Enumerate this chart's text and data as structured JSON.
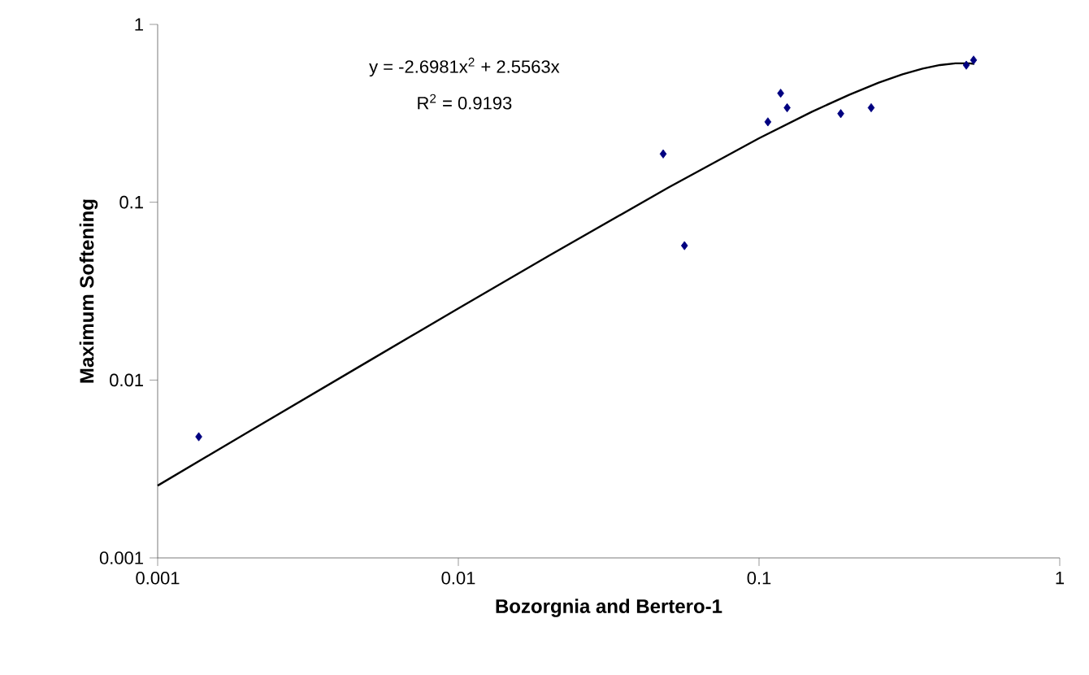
{
  "chart_data": {
    "type": "scatter",
    "xlabel": "Bozorgnia and Bertero-1",
    "ylabel": "Maximum Softening",
    "log": "xy",
    "xlim": [
      0.001,
      1
    ],
    "ylim": [
      0.001,
      1
    ],
    "xticks": [
      0.001,
      0.01,
      0.1,
      1
    ],
    "yticks": [
      0.001,
      0.01,
      0.1,
      1
    ],
    "grid": false,
    "marker": "diamond",
    "annotations": [
      "y = -2.6981x$^{2}$ + 2.5563x",
      "R$^{2}$ = 0.9193"
    ],
    "series": [
      {
        "color": "#000080",
        "x": [
          0.00137,
          0.048,
          0.0565,
          0.107,
          0.118,
          0.124,
          0.187,
          0.236,
          0.489,
          0.517
        ],
        "values": [
          0.0048,
          0.187,
          0.057,
          0.283,
          0.41,
          0.34,
          0.315,
          0.34,
          0.59,
          0.63
        ]
      },
      {
        "type": "line",
        "color": "#000000",
        "marker": "none",
        "line_style": "solid",
        "x": [
          0.001,
          0.002,
          0.005,
          0.01,
          0.02,
          0.05,
          0.1,
          0.15,
          0.2,
          0.25,
          0.3,
          0.35,
          0.4,
          0.45,
          0.5,
          0.52
        ],
        "values": [
          0.00255,
          0.0051,
          0.0127,
          0.0253,
          0.05,
          0.121,
          0.229,
          0.323,
          0.403,
          0.47,
          0.524,
          0.564,
          0.591,
          0.604,
          0.604,
          0.599
        ]
      }
    ]
  }
}
